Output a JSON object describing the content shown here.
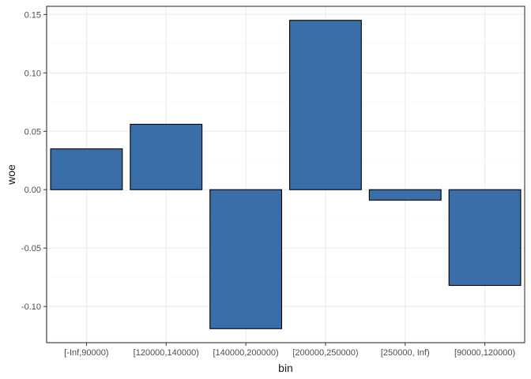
{
  "chart_data": {
    "type": "bar",
    "xlabel": "bin",
    "ylabel": "woe",
    "categories": [
      "[-Inf,90000)",
      "[120000,140000)",
      "[140000,200000)",
      "[200000,250000)",
      "[250000, Inf)",
      "[90000,120000)"
    ],
    "values": [
      0.035,
      0.056,
      -0.119,
      0.145,
      -0.009,
      -0.082
    ],
    "ylim": [
      -0.131,
      0.157
    ],
    "yticks": [
      -0.1,
      -0.05,
      0.0,
      0.05,
      0.1,
      0.15
    ],
    "ytick_labels": [
      "-0.10",
      "-0.05",
      "0.00",
      "0.05",
      "0.10",
      "0.15"
    ],
    "grid": true,
    "colors": {
      "bar_fill": "#3a6ea8",
      "bar_stroke": "#000000",
      "grid_major": "#ebebeb",
      "grid_minor": "#f5f5f5",
      "panel_border": "#333333"
    }
  }
}
